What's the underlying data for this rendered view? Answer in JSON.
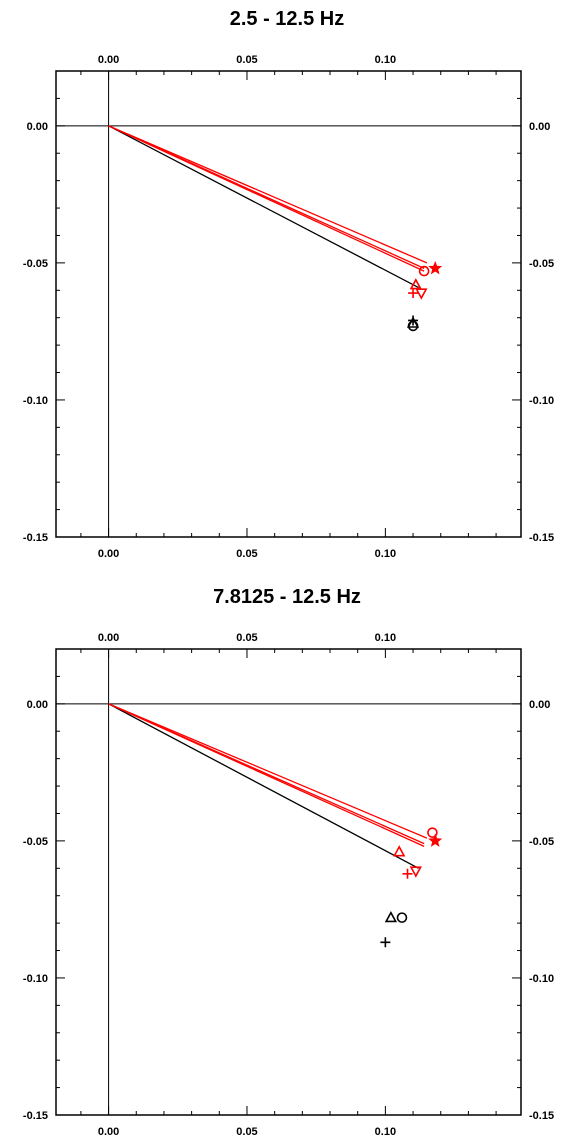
{
  "chart_data": [
    {
      "type": "scatter",
      "title": "2.5 - 12.5 Hz",
      "xlim": [
        -0.019,
        0.149
      ],
      "ylim": [
        -0.15,
        0.02
      ],
      "xticks": [
        0.0,
        0.05,
        0.1
      ],
      "xtick_labels": [
        "0.00",
        "0.05",
        "0.10"
      ],
      "yticks": [
        0.0,
        -0.05,
        -0.1,
        -0.15
      ],
      "ytick_labels": [
        "0.00",
        "-0.05",
        "-0.10",
        "-0.15"
      ],
      "grid": false,
      "zero_lines": true,
      "lines": [
        {
          "color": "#000000",
          "x": [
            0,
            0.112
          ],
          "y": [
            0,
            -0.059
          ]
        },
        {
          "color": "#ff0000",
          "x": [
            0,
            0.114
          ],
          "y": [
            0,
            -0.052
          ]
        },
        {
          "color": "#ff0000",
          "x": [
            0,
            0.115
          ],
          "y": [
            0,
            -0.05
          ]
        },
        {
          "color": "#ff0000",
          "x": [
            0,
            0.114
          ],
          "y": [
            0,
            -0.053
          ]
        }
      ],
      "series": [
        {
          "color": "#ff0000",
          "marker": "star",
          "points": [
            [
              0.118,
              -0.052
            ]
          ]
        },
        {
          "color": "#ff0000",
          "marker": "circle",
          "points": [
            [
              0.114,
              -0.053
            ]
          ]
        },
        {
          "color": "#ff0000",
          "marker": "triangle-up",
          "points": [
            [
              0.111,
              -0.058
            ]
          ]
        },
        {
          "color": "#ff0000",
          "marker": "plus",
          "points": [
            [
              0.11,
              -0.061
            ]
          ]
        },
        {
          "color": "#ff0000",
          "marker": "triangle-down",
          "points": [
            [
              0.113,
              -0.061
            ]
          ]
        },
        {
          "color": "#000000",
          "marker": "plus",
          "points": [
            [
              0.11,
              -0.071
            ]
          ]
        },
        {
          "color": "#000000",
          "marker": "triangle-up",
          "points": [
            [
              0.11,
              -0.072
            ]
          ]
        },
        {
          "color": "#000000",
          "marker": "circle",
          "points": [
            [
              0.11,
              -0.073
            ]
          ]
        }
      ]
    },
    {
      "type": "scatter",
      "title": "7.8125 - 12.5 Hz",
      "xlim": [
        -0.019,
        0.149
      ],
      "ylim": [
        -0.15,
        0.02
      ],
      "xticks": [
        0.0,
        0.05,
        0.1
      ],
      "xtick_labels": [
        "0.00",
        "0.05",
        "0.10"
      ],
      "yticks": [
        0.0,
        -0.05,
        -0.1,
        -0.15
      ],
      "ytick_labels": [
        "0.00",
        "-0.05",
        "-0.10",
        "-0.15"
      ],
      "grid": false,
      "zero_lines": true,
      "lines": [
        {
          "color": "#000000",
          "x": [
            0,
            0.112
          ],
          "y": [
            0,
            -0.06
          ]
        },
        {
          "color": "#ff0000",
          "x": [
            0,
            0.114
          ],
          "y": [
            0,
            -0.052
          ]
        },
        {
          "color": "#ff0000",
          "x": [
            0,
            0.115
          ],
          "y": [
            0,
            -0.049
          ]
        },
        {
          "color": "#ff0000",
          "x": [
            0,
            0.114
          ],
          "y": [
            0,
            -0.051
          ]
        }
      ],
      "series": [
        {
          "color": "#ff0000",
          "marker": "circle",
          "points": [
            [
              0.117,
              -0.047
            ]
          ]
        },
        {
          "color": "#ff0000",
          "marker": "star",
          "points": [
            [
              0.118,
              -0.05
            ]
          ]
        },
        {
          "color": "#ff0000",
          "marker": "triangle-up",
          "points": [
            [
              0.105,
              -0.054
            ]
          ]
        },
        {
          "color": "#ff0000",
          "marker": "plus",
          "points": [
            [
              0.108,
              -0.062
            ]
          ]
        },
        {
          "color": "#ff0000",
          "marker": "triangle-down",
          "points": [
            [
              0.111,
              -0.061
            ]
          ]
        },
        {
          "color": "#000000",
          "marker": "triangle-up",
          "points": [
            [
              0.102,
              -0.078
            ]
          ]
        },
        {
          "color": "#000000",
          "marker": "circle",
          "points": [
            [
              0.106,
              -0.078
            ]
          ]
        },
        {
          "color": "#000000",
          "marker": "plus",
          "points": [
            [
              0.1,
              -0.087
            ]
          ]
        }
      ]
    }
  ]
}
